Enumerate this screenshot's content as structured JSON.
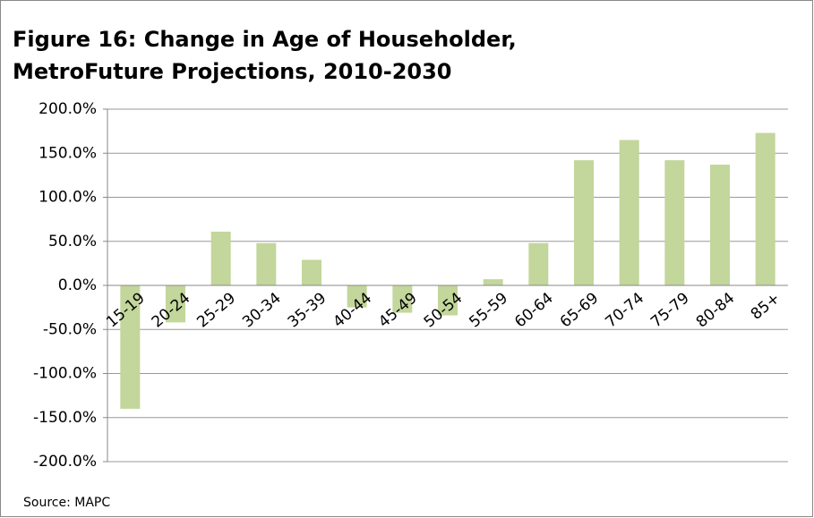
{
  "chart_data": {
    "type": "bar",
    "title": [
      "Figure 16: Change in Age of Householder,",
      "MetroFuture Projections, 2010-2030"
    ],
    "source": "Source: MAPC",
    "categories": [
      "15-19",
      "20-24",
      "25-29",
      "30-34",
      "35-39",
      "40-44",
      "45-49",
      "50-54",
      "55-59",
      "60-64",
      "65-69",
      "70-74",
      "75-79",
      "80-84",
      "85+"
    ],
    "values": [
      -140,
      -42,
      61,
      48,
      29,
      -25,
      -31,
      -34,
      7,
      48,
      142,
      165,
      142,
      137,
      173
    ],
    "color": "#c3d69b",
    "ylim": [
      -200,
      200
    ],
    "yticks": [
      {
        "value": 200,
        "label": "200.0%"
      },
      {
        "value": 150,
        "label": "150.0%"
      },
      {
        "value": 100,
        "label": "100.0%"
      },
      {
        "value": 50,
        "label": "50.0%"
      },
      {
        "value": 0,
        "label": "0.0%"
      },
      {
        "value": -50,
        "label": "-50.0%"
      },
      {
        "value": -100,
        "label": "-100.0%"
      },
      {
        "value": -150,
        "label": "-150.0%"
      },
      {
        "value": -200,
        "label": "-200.0%"
      }
    ],
    "grid": true
  }
}
